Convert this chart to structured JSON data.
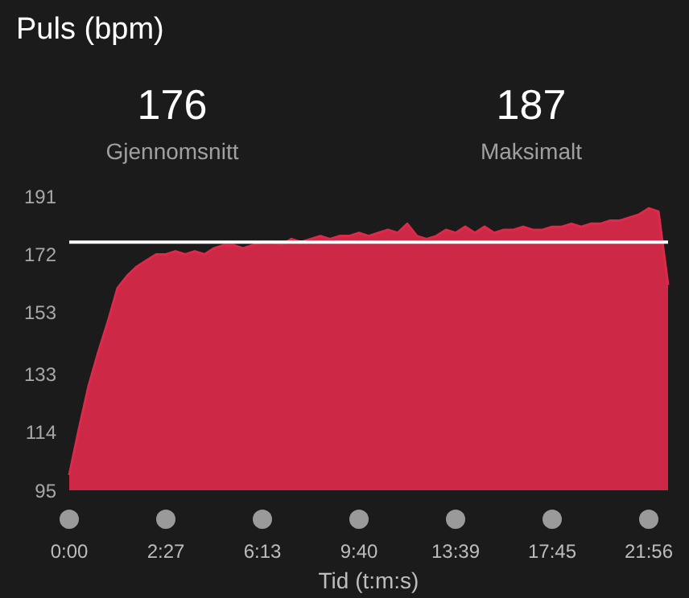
{
  "chart_data": {
    "type": "area",
    "title": "Puls (bpm)",
    "xlabel": "Tid (t:m:s)",
    "annotations": [
      "176",
      "Gjennomsnitt",
      "187",
      "Maksimalt"
    ],
    "categories": [
      "0:00",
      null,
      null,
      null,
      null,
      null,
      null,
      null,
      null,
      null,
      "2:27",
      null,
      null,
      null,
      null,
      null,
      null,
      null,
      null,
      null,
      "6:13",
      null,
      null,
      null,
      null,
      null,
      null,
      null,
      null,
      null,
      "9:40",
      null,
      null,
      null,
      null,
      null,
      null,
      null,
      null,
      null,
      "13:39",
      null,
      null,
      null,
      null,
      null,
      null,
      null,
      null,
      null,
      "17:45",
      null,
      null,
      null,
      null,
      null,
      null,
      null,
      null,
      null,
      "21:56",
      null,
      null
    ],
    "series": [
      {
        "color": "#dc2a4a",
        "values": [
          100,
          115,
          129,
          140,
          150,
          161,
          165,
          168,
          170,
          172,
          172,
          173,
          172,
          173,
          172,
          174,
          175,
          175,
          174,
          175,
          176,
          176,
          175,
          177,
          176,
          177,
          178,
          177,
          178,
          178,
          179,
          178,
          179,
          180,
          179,
          182,
          178,
          177,
          178,
          180,
          179,
          181,
          179,
          181,
          179,
          180,
          180,
          181,
          180,
          180,
          181,
          181,
          182,
          181,
          182,
          182,
          183,
          183,
          184,
          185,
          187,
          186,
          162
        ]
      }
    ],
    "ylim": [
      95,
      191
    ],
    "yticks": [
      95,
      114,
      133,
      153,
      172,
      191
    ],
    "ref_lines": [
      {
        "axis": "y",
        "value": 176,
        "color": "#ffffff"
      }
    ]
  }
}
